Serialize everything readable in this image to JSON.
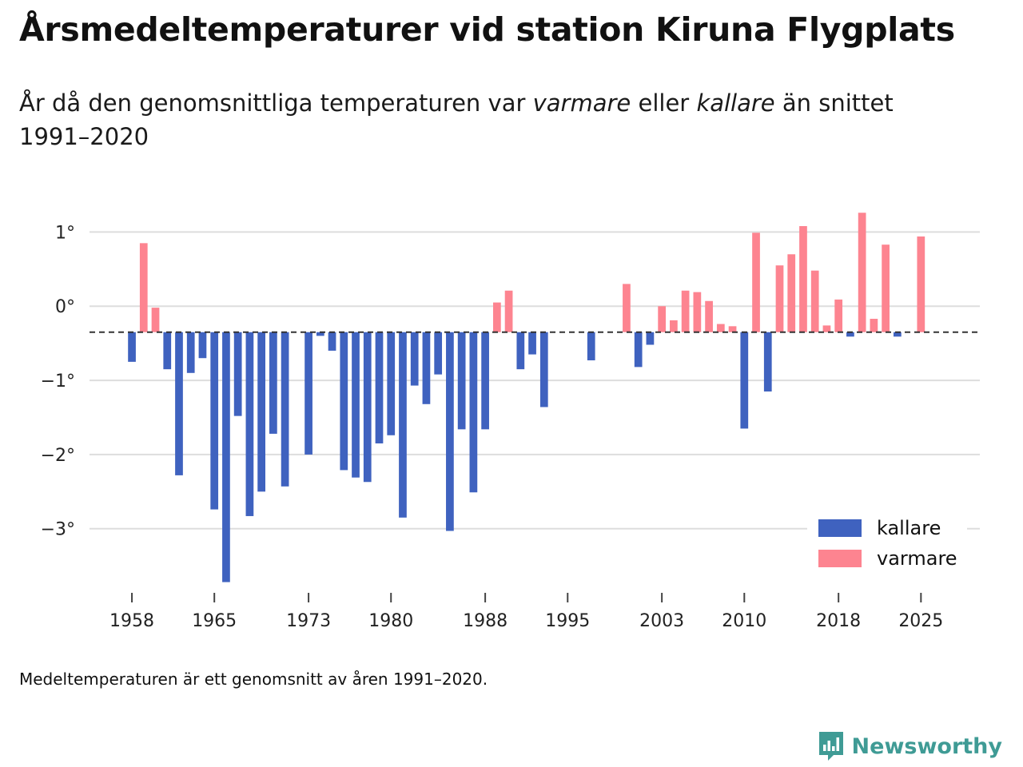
{
  "title": "Årsmedeltemperaturer vid station Kiruna Flygplats",
  "subtitle": {
    "part1": "År då den genomsnittliga temperaturen var ",
    "warm_word": "varmare",
    "part2": " eller ",
    "cold_word": "kallare",
    "part3": " än snittet 1991–2020"
  },
  "footnote": "Medeltemperaturen är ett genomsnitt av åren 1991–2020.",
  "brand": {
    "name": "Newsworthy",
    "icon": "newsworthy-logo-icon",
    "color": "#3f9b95"
  },
  "chart_data": {
    "type": "bar",
    "title": "Årsmedeltemperaturer vid station Kiruna Flygplats",
    "xlabel": "",
    "ylabel": "",
    "baseline": -0.35,
    "baseline_style": "dashed",
    "ylim": [
      -3.8,
      1.5
    ],
    "yticks": [
      1,
      0,
      -1,
      -2,
      -3
    ],
    "ytick_labels": [
      "1°",
      "0°",
      "−1°",
      "−2°",
      "−3°"
    ],
    "xlim": [
      1954.4,
      2030
    ],
    "xticks": [
      1958,
      1965,
      1973,
      1980,
      1988,
      1995,
      2003,
      2010,
      2018,
      2025
    ],
    "xtick_labels": [
      "1958",
      "1965",
      "1973",
      "1980",
      "1988",
      "1995",
      "2003",
      "2010",
      "2018",
      "2025"
    ],
    "grid": true,
    "legend_position": "bottom-right",
    "colors": {
      "kallare": "#3f62bf",
      "varmare": "#fd8490"
    },
    "series": [
      {
        "name": "kallare",
        "label": "kallare"
      },
      {
        "name": "varmare",
        "label": "varmare"
      }
    ],
    "x": [
      1958,
      1959,
      1960,
      1961,
      1962,
      1963,
      1964,
      1965,
      1966,
      1967,
      1968,
      1969,
      1970,
      1971,
      1972,
      1973,
      1974,
      1975,
      1976,
      1977,
      1978,
      1979,
      1980,
      1981,
      1982,
      1983,
      1984,
      1985,
      1986,
      1987,
      1988,
      1989,
      1990,
      1991,
      1992,
      1993,
      1994,
      1995,
      1996,
      1997,
      1998,
      1999,
      2000,
      2001,
      2002,
      2003,
      2004,
      2005,
      2006,
      2007,
      2008,
      2009,
      2010,
      2011,
      2012,
      2013,
      2014,
      2015,
      2016,
      2017,
      2018,
      2019,
      2020,
      2021,
      2022,
      2023,
      2024,
      2025
    ],
    "values": [
      -0.75,
      0.85,
      -0.02,
      -0.85,
      -2.28,
      -0.9,
      -0.7,
      -2.74,
      -3.72,
      -1.48,
      -2.83,
      -2.5,
      -1.72,
      -2.43,
      null,
      -2.0,
      -0.4,
      -0.6,
      -2.21,
      -2.31,
      -2.37,
      -1.85,
      -1.74,
      -2.85,
      -1.07,
      -1.32,
      -0.92,
      -3.03,
      -1.66,
      -2.51,
      -1.66,
      0.05,
      0.21,
      -0.85,
      -0.65,
      -1.36,
      null,
      null,
      null,
      -0.73,
      null,
      null,
      0.3,
      -0.82,
      -0.52,
      0.0,
      -0.19,
      0.21,
      0.19,
      0.07,
      -0.24,
      -0.27,
      -1.65,
      0.99,
      -1.15,
      0.55,
      0.7,
      1.08,
      0.48,
      -0.26,
      0.09,
      -0.41,
      1.26,
      -0.17,
      0.83,
      -0.41,
      null,
      0.94
    ]
  }
}
